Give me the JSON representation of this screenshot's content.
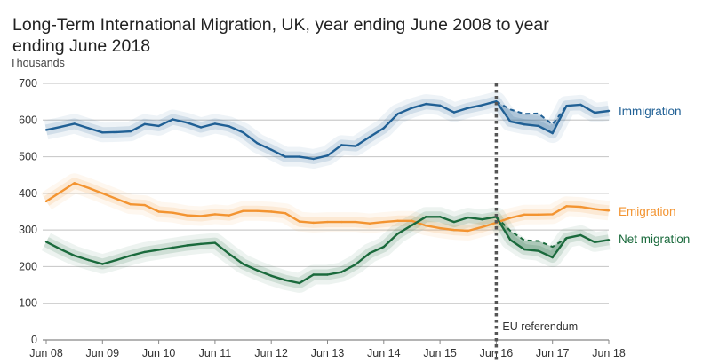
{
  "chart_data": {
    "type": "line",
    "title": "Long-Term International Migration, UK, year ending June 2008 to year ending June 2018",
    "ylabel": "Thousands",
    "xlabel": "",
    "ylim": [
      0,
      700
    ],
    "yticks": [
      0,
      100,
      200,
      300,
      400,
      500,
      600,
      700
    ],
    "xtick_labels": [
      "Jun 08",
      "Jun 09",
      "Jun 10",
      "Jun 11",
      "Jun 12",
      "Jun 13",
      "Jun 14",
      "Jun 15",
      "Jun 16",
      "Jun 17",
      "Jun 18"
    ],
    "x_quarters": 41,
    "grid": true,
    "series": [
      {
        "name": "Immigration",
        "color": "#206095",
        "values": [
          573,
          581,
          590,
          578,
          566,
          567,
          569,
          589,
          584,
          602,
          593,
          580,
          590,
          583,
          566,
          537,
          519,
          500,
          500,
          494,
          503,
          532,
          529,
          554,
          578,
          617,
          633,
          644,
          640,
          621,
          633,
          641,
          651,
          596,
          588,
          584,
          564,
          639,
          642,
          620,
          625
        ],
        "revised": {
          "start_index": 32,
          "values": [
            651,
            629,
            617,
            618,
            588,
            639
          ]
        }
      },
      {
        "name": "Emigration",
        "color": "#f39431",
        "values": [
          378,
          403,
          428,
          415,
          400,
          385,
          370,
          368,
          350,
          347,
          340,
          338,
          343,
          340,
          352,
          352,
          350,
          346,
          323,
          320,
          322,
          322,
          322,
          318,
          322,
          325,
          325,
          312,
          305,
          300,
          298,
          308,
          320,
          333,
          342,
          342,
          343,
          365,
          363,
          357,
          353
        ]
      },
      {
        "name": "Net migration",
        "color": "#1a6a3c",
        "values": [
          268,
          248,
          230,
          218,
          207,
          218,
          230,
          240,
          246,
          252,
          258,
          262,
          265,
          235,
          207,
          190,
          175,
          163,
          155,
          178,
          178,
          185,
          206,
          237,
          254,
          290,
          313,
          336,
          336,
          322,
          334,
          329,
          336,
          273,
          247,
          243,
          225,
          278,
          286,
          267,
          273
        ],
        "revised": {
          "start_index": 32,
          "values": [
            336,
            298,
            272,
            270,
            254,
            278
          ]
        }
      }
    ],
    "annotations": [
      {
        "label": "EU referendum",
        "x_label": "Jun 16",
        "style": "dotted-vertical-line"
      }
    ]
  }
}
